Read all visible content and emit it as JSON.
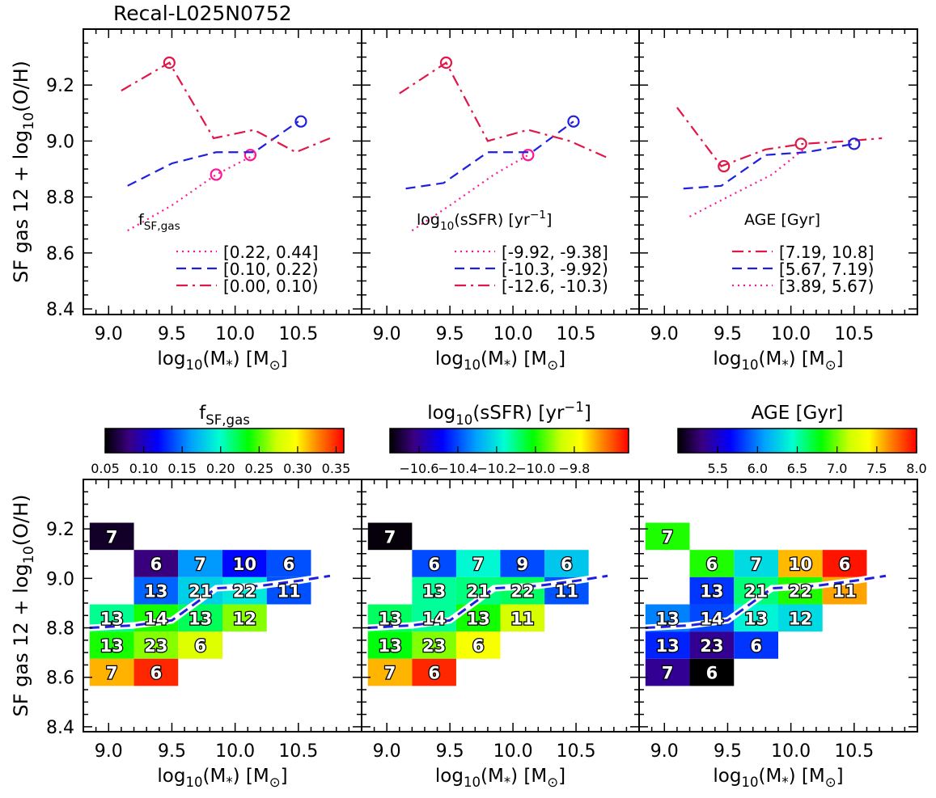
{
  "figure_title": "Recal-L025N0752",
  "chart_data": [
    {
      "type": "line",
      "panel": "top-left",
      "xlabel": "log10(M*) [M⊙]",
      "ylabel": "SF gas 12 + log10(O/H)",
      "xlim": [
        8.8,
        11.0
      ],
      "ylim": [
        8.38,
        9.4
      ],
      "xticks": [
        9.0,
        9.5,
        10.0,
        10.5
      ],
      "yticks": [
        8.4,
        8.6,
        8.8,
        9.0,
        9.2
      ],
      "xtick_labels": [
        "9.0",
        "9.5",
        "10.0",
        "10.5"
      ],
      "ytick_labels": [
        "8.4",
        "8.6",
        "8.8",
        "9.0",
        "9.2"
      ],
      "legend_title": "f_SF,gas",
      "legend_placement": "bottom-right",
      "series": [
        {
          "name": "[0.22, 0.44]",
          "color": "#ff1493",
          "dash": "dot",
          "x": [
            9.15,
            9.5,
            9.85,
            10.15
          ],
          "y": [
            8.68,
            8.77,
            8.88,
            8.95
          ],
          "marked_points": [
            [
              9.85,
              8.88
            ],
            [
              10.12,
              8.95
            ]
          ]
        },
        {
          "name": "[0.10, 0.22)",
          "color": "#1f1fdf",
          "dash": "dash",
          "x": [
            9.15,
            9.5,
            9.85,
            10.15,
            10.5
          ],
          "y": [
            8.84,
            8.92,
            8.96,
            8.96,
            9.07
          ],
          "marked_points": [
            [
              10.52,
              9.07
            ]
          ]
        },
        {
          "name": "[0.00, 0.10)",
          "color": "#e0184a",
          "dash": "dashdot",
          "x": [
            9.1,
            9.48,
            9.83,
            10.15,
            10.48,
            10.75
          ],
          "y": [
            9.18,
            9.28,
            9.01,
            9.04,
            8.96,
            9.01
          ],
          "marked_points": [
            [
              9.48,
              9.28
            ]
          ]
        }
      ]
    },
    {
      "type": "line",
      "panel": "top-middle",
      "xlabel": "log10(M*) [M⊙]",
      "xlim": [
        8.8,
        11.0
      ],
      "ylim": [
        8.38,
        9.4
      ],
      "xtick_labels": [
        "9.0",
        "9.5",
        "10.0",
        "10.5"
      ],
      "legend_title": "log10(sSFR) [yr^-1]",
      "legend_placement": "bottom-right",
      "series": [
        {
          "name": "[-9.92, -9.38]",
          "color": "#ff1493",
          "dash": "dot",
          "x": [
            9.2,
            9.5,
            9.85,
            10.12
          ],
          "y": [
            8.68,
            8.77,
            8.88,
            8.95
          ],
          "marked_points": [
            [
              10.12,
              8.95
            ]
          ]
        },
        {
          "name": "[-10.3, -9.92)",
          "color": "#1f1fdf",
          "dash": "dash",
          "x": [
            9.15,
            9.45,
            9.8,
            10.15,
            10.48
          ],
          "y": [
            8.83,
            8.85,
            8.96,
            8.96,
            9.07
          ],
          "marked_points": [
            [
              10.48,
              9.07
            ]
          ]
        },
        {
          "name": "[-12.6, -10.3)",
          "color": "#e0184a",
          "dash": "dashdot",
          "x": [
            9.1,
            9.47,
            9.8,
            10.12,
            10.45,
            10.75
          ],
          "y": [
            9.17,
            9.28,
            9.0,
            9.04,
            9.0,
            8.94
          ],
          "marked_points": [
            [
              9.47,
              9.28
            ]
          ]
        }
      ]
    },
    {
      "type": "line",
      "panel": "top-right",
      "xlabel": "log10(M*) [M⊙]",
      "xlim": [
        8.8,
        11.0
      ],
      "ylim": [
        8.38,
        9.4
      ],
      "xtick_labels": [
        "9.0",
        "9.5",
        "10.0",
        "10.5"
      ],
      "legend_title": "AGE [Gyr]",
      "legend_placement": "bottom-right",
      "series": [
        {
          "name": "[7.19, 10.8]",
          "color": "#e0184a",
          "dash": "dashdot",
          "x": [
            9.1,
            9.45,
            9.8,
            10.1,
            10.45,
            10.72
          ],
          "y": [
            9.12,
            8.91,
            8.97,
            8.99,
            9.0,
            9.01
          ],
          "marked_points": [
            [
              9.47,
              8.91
            ],
            [
              10.08,
              8.99
            ]
          ]
        },
        {
          "name": "[5.67, 7.19)",
          "color": "#1f1fdf",
          "dash": "dash",
          "x": [
            9.15,
            9.45,
            9.8,
            10.12,
            10.5
          ],
          "y": [
            8.83,
            8.84,
            8.95,
            8.96,
            8.99
          ],
          "marked_points": [
            [
              10.5,
              8.99
            ]
          ]
        },
        {
          "name": "[3.89, 5.67)",
          "color": "#ff1493",
          "dash": "dot",
          "x": [
            9.2,
            9.5,
            9.85,
            10.1
          ],
          "y": [
            8.73,
            8.8,
            8.88,
            8.97
          ],
          "marked_points": []
        }
      ]
    },
    {
      "type": "heatmap",
      "panel": "bottom-left",
      "colorbar_label": "f_SF,gas",
      "colorbar_range": [
        0.05,
        0.36
      ],
      "colorbar_ticks": [
        "0.05",
        "0.10",
        "0.15",
        "0.20",
        "0.25",
        "0.30",
        "0.35"
      ],
      "colorbar_tick_values": [
        0.05,
        0.1,
        0.15,
        0.2,
        0.25,
        0.3,
        0.35
      ],
      "xlabel": "log10(M*) [M⊙]",
      "ylabel": "SF gas 12 + log10(O/H)",
      "bin_width": [
        0.35,
        0.11
      ],
      "cells": [
        {
          "x": 8.85,
          "y": 9.17,
          "count": "7",
          "value": 0.06
        },
        {
          "x": 9.2,
          "y": 9.06,
          "count": "6",
          "value": 0.08
        },
        {
          "x": 9.55,
          "y": 9.06,
          "count": "7",
          "value": 0.16
        },
        {
          "x": 9.9,
          "y": 9.06,
          "count": "10",
          "value": 0.12
        },
        {
          "x": 10.25,
          "y": 9.06,
          "count": "6",
          "value": 0.14
        },
        {
          "x": 9.2,
          "y": 8.95,
          "count": "13",
          "value": 0.145
        },
        {
          "x": 9.55,
          "y": 8.95,
          "count": "21",
          "value": 0.18
        },
        {
          "x": 9.9,
          "y": 8.95,
          "count": "22",
          "value": 0.19
        },
        {
          "x": 10.25,
          "y": 8.95,
          "count": "11",
          "value": 0.14
        },
        {
          "x": 8.85,
          "y": 8.84,
          "count": "13",
          "value": 0.21
        },
        {
          "x": 9.2,
          "y": 8.84,
          "count": "14",
          "value": 0.24
        },
        {
          "x": 9.55,
          "y": 8.84,
          "count": "13",
          "value": 0.22
        },
        {
          "x": 9.9,
          "y": 8.84,
          "count": "12",
          "value": 0.26
        },
        {
          "x": 8.85,
          "y": 8.73,
          "count": "13",
          "value": 0.24
        },
        {
          "x": 9.2,
          "y": 8.73,
          "count": "23",
          "value": 0.26
        },
        {
          "x": 9.55,
          "y": 8.73,
          "count": "6",
          "value": 0.28
        },
        {
          "x": 8.85,
          "y": 8.62,
          "count": "7",
          "value": 0.315
        },
        {
          "x": 9.2,
          "y": 8.62,
          "count": "6",
          "value": 0.35
        }
      ],
      "median_line": {
        "x": [
          8.85,
          9.2,
          9.5,
          9.85,
          10.2,
          10.5,
          10.75
        ],
        "y": [
          8.8,
          8.81,
          8.83,
          8.96,
          8.97,
          8.99,
          9.01
        ]
      }
    },
    {
      "type": "heatmap",
      "panel": "bottom-middle",
      "colorbar_label": "log10(sSFR) [yr^-1]",
      "colorbar_range": [
        -10.75,
        -9.52
      ],
      "colorbar_ticks": [
        "−10.6",
        "−10.4",
        "−10.2",
        "−10.0",
        "−9.8"
      ],
      "colorbar_tick_values": [
        -10.6,
        -10.4,
        -10.2,
        -10.0,
        -9.8
      ],
      "xlabel": "log10(M*) [M⊙]",
      "bin_width": [
        0.35,
        0.11
      ],
      "cells": [
        {
          "x": 8.85,
          "y": 9.17,
          "count": "7",
          "value": -10.74
        },
        {
          "x": 9.2,
          "y": 9.06,
          "count": "6",
          "value": -10.4
        },
        {
          "x": 9.55,
          "y": 9.06,
          "count": "7",
          "value": -10.17
        },
        {
          "x": 9.9,
          "y": 9.06,
          "count": "9",
          "value": -10.4
        },
        {
          "x": 10.25,
          "y": 9.06,
          "count": "6",
          "value": -10.25
        },
        {
          "x": 9.2,
          "y": 8.95,
          "count": "13",
          "value": -10.12
        },
        {
          "x": 9.55,
          "y": 8.95,
          "count": "21",
          "value": -10.1
        },
        {
          "x": 9.9,
          "y": 8.95,
          "count": "22",
          "value": -10.08
        },
        {
          "x": 10.25,
          "y": 8.95,
          "count": "11",
          "value": -10.39
        },
        {
          "x": 8.85,
          "y": 8.84,
          "count": "13",
          "value": -10.08
        },
        {
          "x": 9.2,
          "y": 8.84,
          "count": "14",
          "value": -10.12
        },
        {
          "x": 9.55,
          "y": 8.84,
          "count": "13",
          "value": -10.0
        },
        {
          "x": 9.9,
          "y": 8.84,
          "count": "11",
          "value": -9.85
        },
        {
          "x": 8.85,
          "y": 8.73,
          "count": "13",
          "value": -10.02
        },
        {
          "x": 9.2,
          "y": 8.73,
          "count": "23",
          "value": -9.92
        },
        {
          "x": 9.55,
          "y": 8.73,
          "count": "6",
          "value": -9.78
        },
        {
          "x": 8.85,
          "y": 8.62,
          "count": "7",
          "value": -9.7
        },
        {
          "x": 9.2,
          "y": 8.62,
          "count": "6",
          "value": -9.56
        }
      ],
      "median_line": {
        "x": [
          8.85,
          9.2,
          9.5,
          9.85,
          10.2,
          10.5,
          10.75
        ],
        "y": [
          8.8,
          8.81,
          8.83,
          8.96,
          8.97,
          8.99,
          9.01
        ]
      }
    },
    {
      "type": "heatmap",
      "panel": "bottom-right",
      "colorbar_label": "AGE [Gyr]",
      "colorbar_range": [
        5.0,
        8.0
      ],
      "colorbar_ticks": [
        "5.5",
        "6.0",
        "6.5",
        "7.0",
        "7.5",
        "8.0"
      ],
      "colorbar_tick_values": [
        5.5,
        6.0,
        6.5,
        7.0,
        7.5,
        8.0
      ],
      "xlabel": "log10(M*) [M⊙]",
      "bin_width": [
        0.35,
        0.11
      ],
      "cells": [
        {
          "x": 8.85,
          "y": 9.17,
          "count": "7",
          "value": 6.85
        },
        {
          "x": 9.2,
          "y": 9.06,
          "count": "6",
          "value": 6.85
        },
        {
          "x": 9.55,
          "y": 9.06,
          "count": "7",
          "value": 6.3
        },
        {
          "x": 9.9,
          "y": 9.06,
          "count": "10",
          "value": 7.55
        },
        {
          "x": 10.25,
          "y": 9.06,
          "count": "6",
          "value": 7.95
        },
        {
          "x": 9.2,
          "y": 8.95,
          "count": "13",
          "value": 5.8
        },
        {
          "x": 9.55,
          "y": 8.95,
          "count": "21",
          "value": 6.6
        },
        {
          "x": 9.9,
          "y": 8.95,
          "count": "22",
          "value": 6.85
        },
        {
          "x": 10.25,
          "y": 8.95,
          "count": "11",
          "value": 7.6
        },
        {
          "x": 8.85,
          "y": 8.84,
          "count": "13",
          "value": 6.0
        },
        {
          "x": 9.2,
          "y": 8.84,
          "count": "14",
          "value": 5.85
        },
        {
          "x": 9.55,
          "y": 8.84,
          "count": "13",
          "value": 6.4
        },
        {
          "x": 9.9,
          "y": 8.84,
          "count": "12",
          "value": 6.3
        },
        {
          "x": 8.85,
          "y": 8.73,
          "count": "13",
          "value": 5.75
        },
        {
          "x": 9.2,
          "y": 8.73,
          "count": "23",
          "value": 5.35
        },
        {
          "x": 9.55,
          "y": 8.73,
          "count": "6",
          "value": 5.8
        },
        {
          "x": 8.85,
          "y": 8.62,
          "count": "7",
          "value": 5.35
        },
        {
          "x": 9.2,
          "y": 8.62,
          "count": "6",
          "value": 5.0
        }
      ],
      "median_line": {
        "x": [
          8.85,
          9.2,
          9.5,
          9.85,
          10.2,
          10.5,
          10.75
        ],
        "y": [
          8.8,
          8.81,
          8.83,
          8.96,
          8.97,
          8.99,
          9.01
        ]
      }
    }
  ]
}
